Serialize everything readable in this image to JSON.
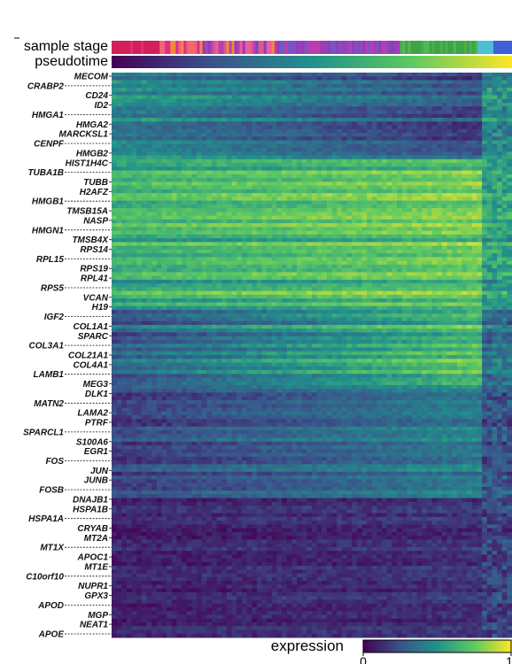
{
  "chart_data": {
    "type": "heatmap",
    "tracks": [
      {
        "label": "sample stage",
        "colors": [
          "#d3205a",
          "#e0307a",
          "#f05a9a",
          "#f36c5a",
          "#ef8a3c",
          "#d65a8f",
          "#b83fae",
          "#8e3fb8",
          "#7d52c4",
          "#9b3fb4",
          "#3fa34a",
          "#4ab04c",
          "#52b84f",
          "#4ac0d0",
          "#3f8ed0",
          "#3f60d8"
        ]
      },
      {
        "label": "pseudotime",
        "colormap": "viridis"
      }
    ],
    "colorbar": {
      "label": "expression",
      "ticks": [
        "0",
        "1"
      ],
      "colormap": "viridis"
    },
    "genes": [
      "MECOM",
      "CRABP2",
      "CD24",
      "ID2",
      "HMGA1",
      "HMGA2",
      "MARCKSL1",
      "CENPF",
      "HMGB2",
      "HIST1H4C",
      "TUBA1B",
      "TUBB",
      "H2AFZ",
      "HMGB1",
      "TMSB15A",
      "NASP",
      "HMGN1",
      "TMSB4X",
      "RPS14",
      "RPL15",
      "RPS19",
      "RPL41",
      "RPS5",
      "VCAN",
      "H19",
      "IGF2",
      "COL1A1",
      "SPARC",
      "COL3A1",
      "COL21A1",
      "COL4A1",
      "LAMB1",
      "MEG3",
      "DLK1",
      "MATN2",
      "LAMA2",
      "PTRF",
      "SPARCL1",
      "S100A6",
      "EGR1",
      "FOS",
      "JUN",
      "JUNB",
      "FOSB",
      "DNAJB1",
      "HSPA1B",
      "HSPA1A",
      "CRYAB",
      "MT2A",
      "MT1X",
      "APOC1",
      "MT1E",
      "C10orf10",
      "NUPR1",
      "GPX3",
      "APOD",
      "MGP",
      "NEAT1",
      "APOE"
    ],
    "xlabel": "",
    "ylabel": "",
    "value_range": [
      0,
      1
    ]
  }
}
